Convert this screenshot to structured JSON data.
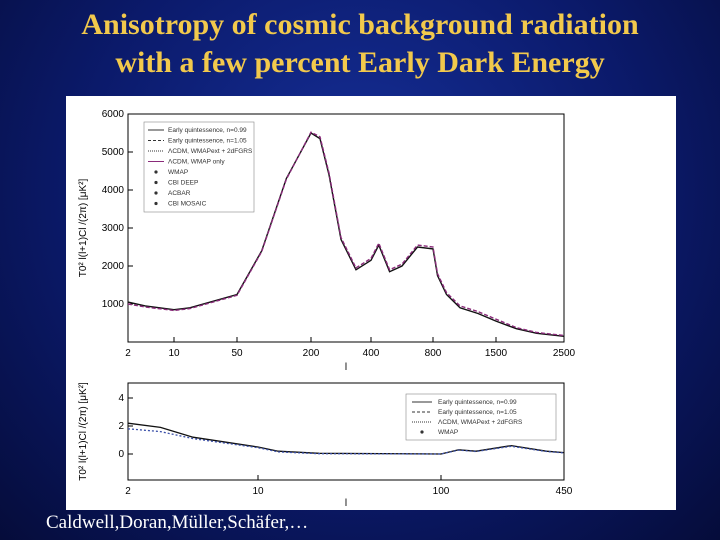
{
  "slide": {
    "title_line1": "Anisotropy of cosmic background radiation",
    "title_line2": "with a few percent Early Dark Energy",
    "credit": "Caldwell,Doran,Müller,Schäfer,…"
  },
  "colors": {
    "title": "#f2c94c",
    "background": "#0b1a6b"
  },
  "chart_data": [
    {
      "type": "line",
      "xscale": "log-like",
      "xlabel": "l",
      "ylabel": "T0² l(l+1)Cl /(2π) [μK²]",
      "xticks": [
        "2",
        "10",
        "50",
        "200",
        "400",
        "800",
        "1500",
        "2500"
      ],
      "yticks": [
        "1000",
        "2000",
        "3000",
        "4000",
        "5000",
        "6000"
      ],
      "ylim": [
        0,
        6000
      ],
      "legend": [
        "Early quintessence, n=0.99",
        "Early quintessence, n=1.05",
        "ΛCDM, WMAPext + 2dFGRS",
        "ΛCDM, WMAP only",
        "WMAP",
        "CBI DEEP",
        "ACBAR",
        "CBI MOSAIC"
      ],
      "series": [
        {
          "name": "Early quintessence, n=0.99",
          "x": [
            2,
            5,
            10,
            20,
            50,
            100,
            150,
            200,
            230,
            260,
            300,
            350,
            400,
            450,
            520,
            600,
            700,
            800,
            850,
            950,
            1100,
            1300,
            1500,
            1800,
            2100,
            2500
          ],
          "y": [
            1050,
            950,
            850,
            900,
            1250,
            2400,
            4300,
            5500,
            5350,
            4400,
            2700,
            1900,
            2150,
            2550,
            1850,
            2000,
            2500,
            2450,
            1750,
            1250,
            900,
            750,
            550,
            350,
            230,
            150
          ]
        },
        {
          "name": "Early quintessence, n=1.05",
          "x": [
            2,
            5,
            10,
            20,
            50,
            100,
            150,
            200,
            230,
            260,
            300,
            350,
            400,
            450,
            520,
            600,
            700,
            800,
            850,
            950,
            1100,
            1300,
            1500,
            1800,
            2100,
            2500
          ],
          "y": [
            1000,
            920,
            830,
            880,
            1230,
            2380,
            4280,
            5520,
            5400,
            4450,
            2750,
            1950,
            2200,
            2600,
            1900,
            2050,
            2550,
            2500,
            1800,
            1300,
            950,
            800,
            600,
            380,
            250,
            170
          ]
        }
      ]
    },
    {
      "type": "line",
      "xlabel": "l",
      "ylabel": "T0² l(l+1)Cl /(2π) [μK²]",
      "xticks": [
        "2",
        "10",
        "100",
        "450"
      ],
      "yticks": [
        "0",
        "2",
        "4"
      ],
      "legend": [
        "Early quintessence, n=0.99",
        "Early quintessence, n=1.05",
        "ΛCDM, WMAPext + 2dFGRS",
        "WMAP"
      ],
      "series": [
        {
          "name": "Early quintessence, n=0.99",
          "x": [
            2,
            4,
            6,
            10,
            20,
            40,
            100,
            150,
            200,
            300,
            400,
            450
          ],
          "y": [
            2.2,
            1.9,
            1.2,
            0.5,
            0.2,
            0.05,
            0.0,
            0.3,
            0.2,
            0.6,
            0.2,
            0.1
          ]
        },
        {
          "name": "ΛCDM, WMAPext + 2dFGRS",
          "x": [
            2,
            4,
            6,
            10,
            20,
            40,
            100,
            150,
            200,
            300,
            400,
            450
          ],
          "y": [
            1.8,
            1.6,
            1.1,
            0.45,
            0.15,
            0.02,
            0.0,
            0.28,
            0.18,
            0.55,
            0.18,
            0.08
          ]
        }
      ]
    }
  ]
}
